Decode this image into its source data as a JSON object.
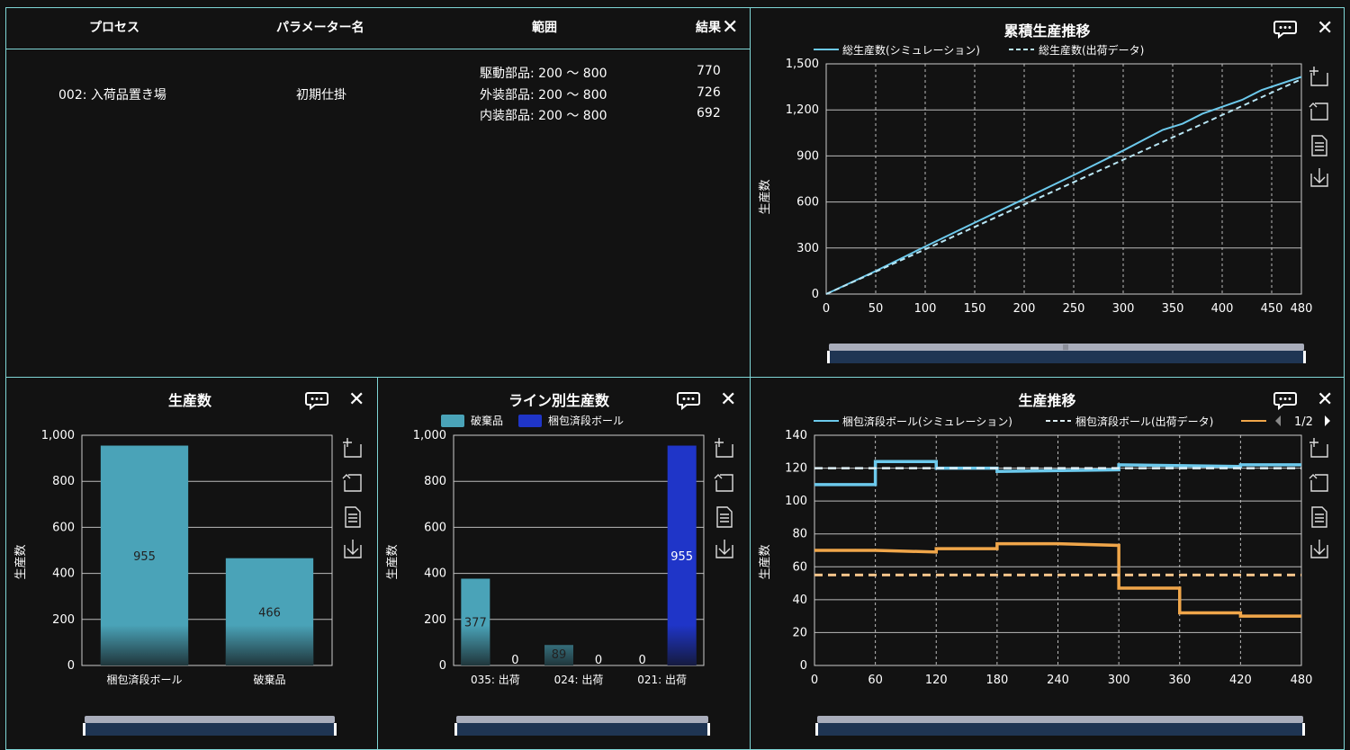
{
  "table": {
    "headers": {
      "process": "プロセス",
      "param": "パラメーター名",
      "range": "範囲",
      "result": "結果"
    },
    "row": {
      "process": "002: 入荷品置き場",
      "param": "初期仕掛",
      "items": [
        {
          "range": "駆動部品: 200 ～ 800",
          "result": "770"
        },
        {
          "range": "外装部品: 200 ～ 800",
          "result": "726"
        },
        {
          "range": "内装部品: 200 ～ 800",
          "result": "692"
        }
      ]
    }
  },
  "cumulative": {
    "title": "累積生産推移",
    "legend": [
      "総生産数(シミュレーション)",
      "総生産数(出荷データ)"
    ],
    "ylabel": "生産数",
    "colors": {
      "sim": "#6cc9ec",
      "ship": "#b8e6f5"
    },
    "chart_data": {
      "type": "line",
      "xlim": [
        0,
        480
      ],
      "ylim": [
        0,
        1500
      ],
      "xticks": [
        "0",
        "50",
        "100",
        "150",
        "200",
        "250",
        "300",
        "350",
        "400",
        "450",
        "480"
      ],
      "yticks": [
        "0",
        "300",
        "600",
        "900",
        "1,200",
        "1,500"
      ],
      "series": [
        {
          "name": "総生産数(シミュレーション)",
          "style": "solid",
          "x": [
            0,
            50,
            100,
            150,
            200,
            250,
            300,
            340,
            360,
            380,
            420,
            440,
            480
          ],
          "y": [
            0,
            150,
            310,
            465,
            620,
            775,
            935,
            1070,
            1110,
            1175,
            1265,
            1330,
            1415
          ]
        },
        {
          "name": "総生産数(出荷データ)",
          "style": "dashed",
          "x": [
            0,
            480
          ],
          "y": [
            0,
            1400
          ]
        }
      ]
    }
  },
  "production": {
    "title": "生産数",
    "ylabel": "生産数",
    "bar_color": "#4aa3b8",
    "chart_data": {
      "type": "bar",
      "categories": [
        "梱包済段ボール",
        "破棄品"
      ],
      "values": [
        955,
        466
      ],
      "ylim": [
        0,
        1000
      ],
      "yticks": [
        "0",
        "200",
        "400",
        "600",
        "800",
        "1,000"
      ]
    }
  },
  "byline": {
    "title": "ライン別生産数",
    "ylabel": "生産数",
    "legend": [
      "破棄品",
      "梱包済段ボール"
    ],
    "colors": {
      "discard": "#4aa3b8",
      "packed": "#1f35c8"
    },
    "chart_data": {
      "type": "bar",
      "categories": [
        "035: 出荷",
        "024: 出荷",
        "021: 出荷"
      ],
      "series": [
        {
          "name": "破棄品",
          "values": [
            377,
            89,
            0
          ]
        },
        {
          "name": "梱包済段ボール",
          "values": [
            0,
            0,
            955
          ]
        }
      ],
      "ylim": [
        0,
        1000
      ],
      "yticks": [
        "0",
        "200",
        "400",
        "600",
        "800",
        "1,000"
      ]
    }
  },
  "trend": {
    "title": "生産推移",
    "ylabel": "生産数",
    "legend": [
      "梱包済段ボール(シミュレーション)",
      "梱包済段ボール(出荷データ)"
    ],
    "legend_page": "1/2",
    "colors": {
      "sim": "#6cc9ec",
      "ship": "#dfeff5",
      "orange": "#f0a64a",
      "orange_dash": "#f5c48a"
    },
    "chart_data": {
      "type": "line",
      "xlim": [
        0,
        480
      ],
      "ylim": [
        0,
        140
      ],
      "xticks": [
        "0",
        "60",
        "120",
        "180",
        "240",
        "300",
        "360",
        "420",
        "480"
      ],
      "yticks": [
        "0",
        "20",
        "40",
        "60",
        "80",
        "100",
        "120",
        "140"
      ],
      "series": [
        {
          "name": "梱包済段ボール(シミュレーション)",
          "style": "step",
          "x": [
            0,
            60,
            60,
            120,
            120,
            180,
            180,
            300,
            300,
            420,
            420,
            480
          ],
          "y": [
            110,
            110,
            124,
            124,
            120,
            120,
            118,
            119,
            122,
            121,
            122,
            122
          ]
        },
        {
          "name": "梱包済段ボール(出荷データ)",
          "style": "dashed",
          "x": [
            0,
            480
          ],
          "y": [
            120,
            120
          ]
        },
        {
          "style": "step",
          "x": [
            0,
            60,
            120,
            120,
            180,
            180,
            240,
            300,
            300,
            360,
            360,
            420,
            420,
            480
          ],
          "y": [
            70,
            70,
            69,
            71,
            71,
            74,
            74,
            73,
            47,
            47,
            32,
            32,
            30,
            30
          ]
        },
        {
          "style": "dashed",
          "x": [
            0,
            480
          ],
          "y": [
            55,
            55
          ]
        }
      ]
    }
  }
}
